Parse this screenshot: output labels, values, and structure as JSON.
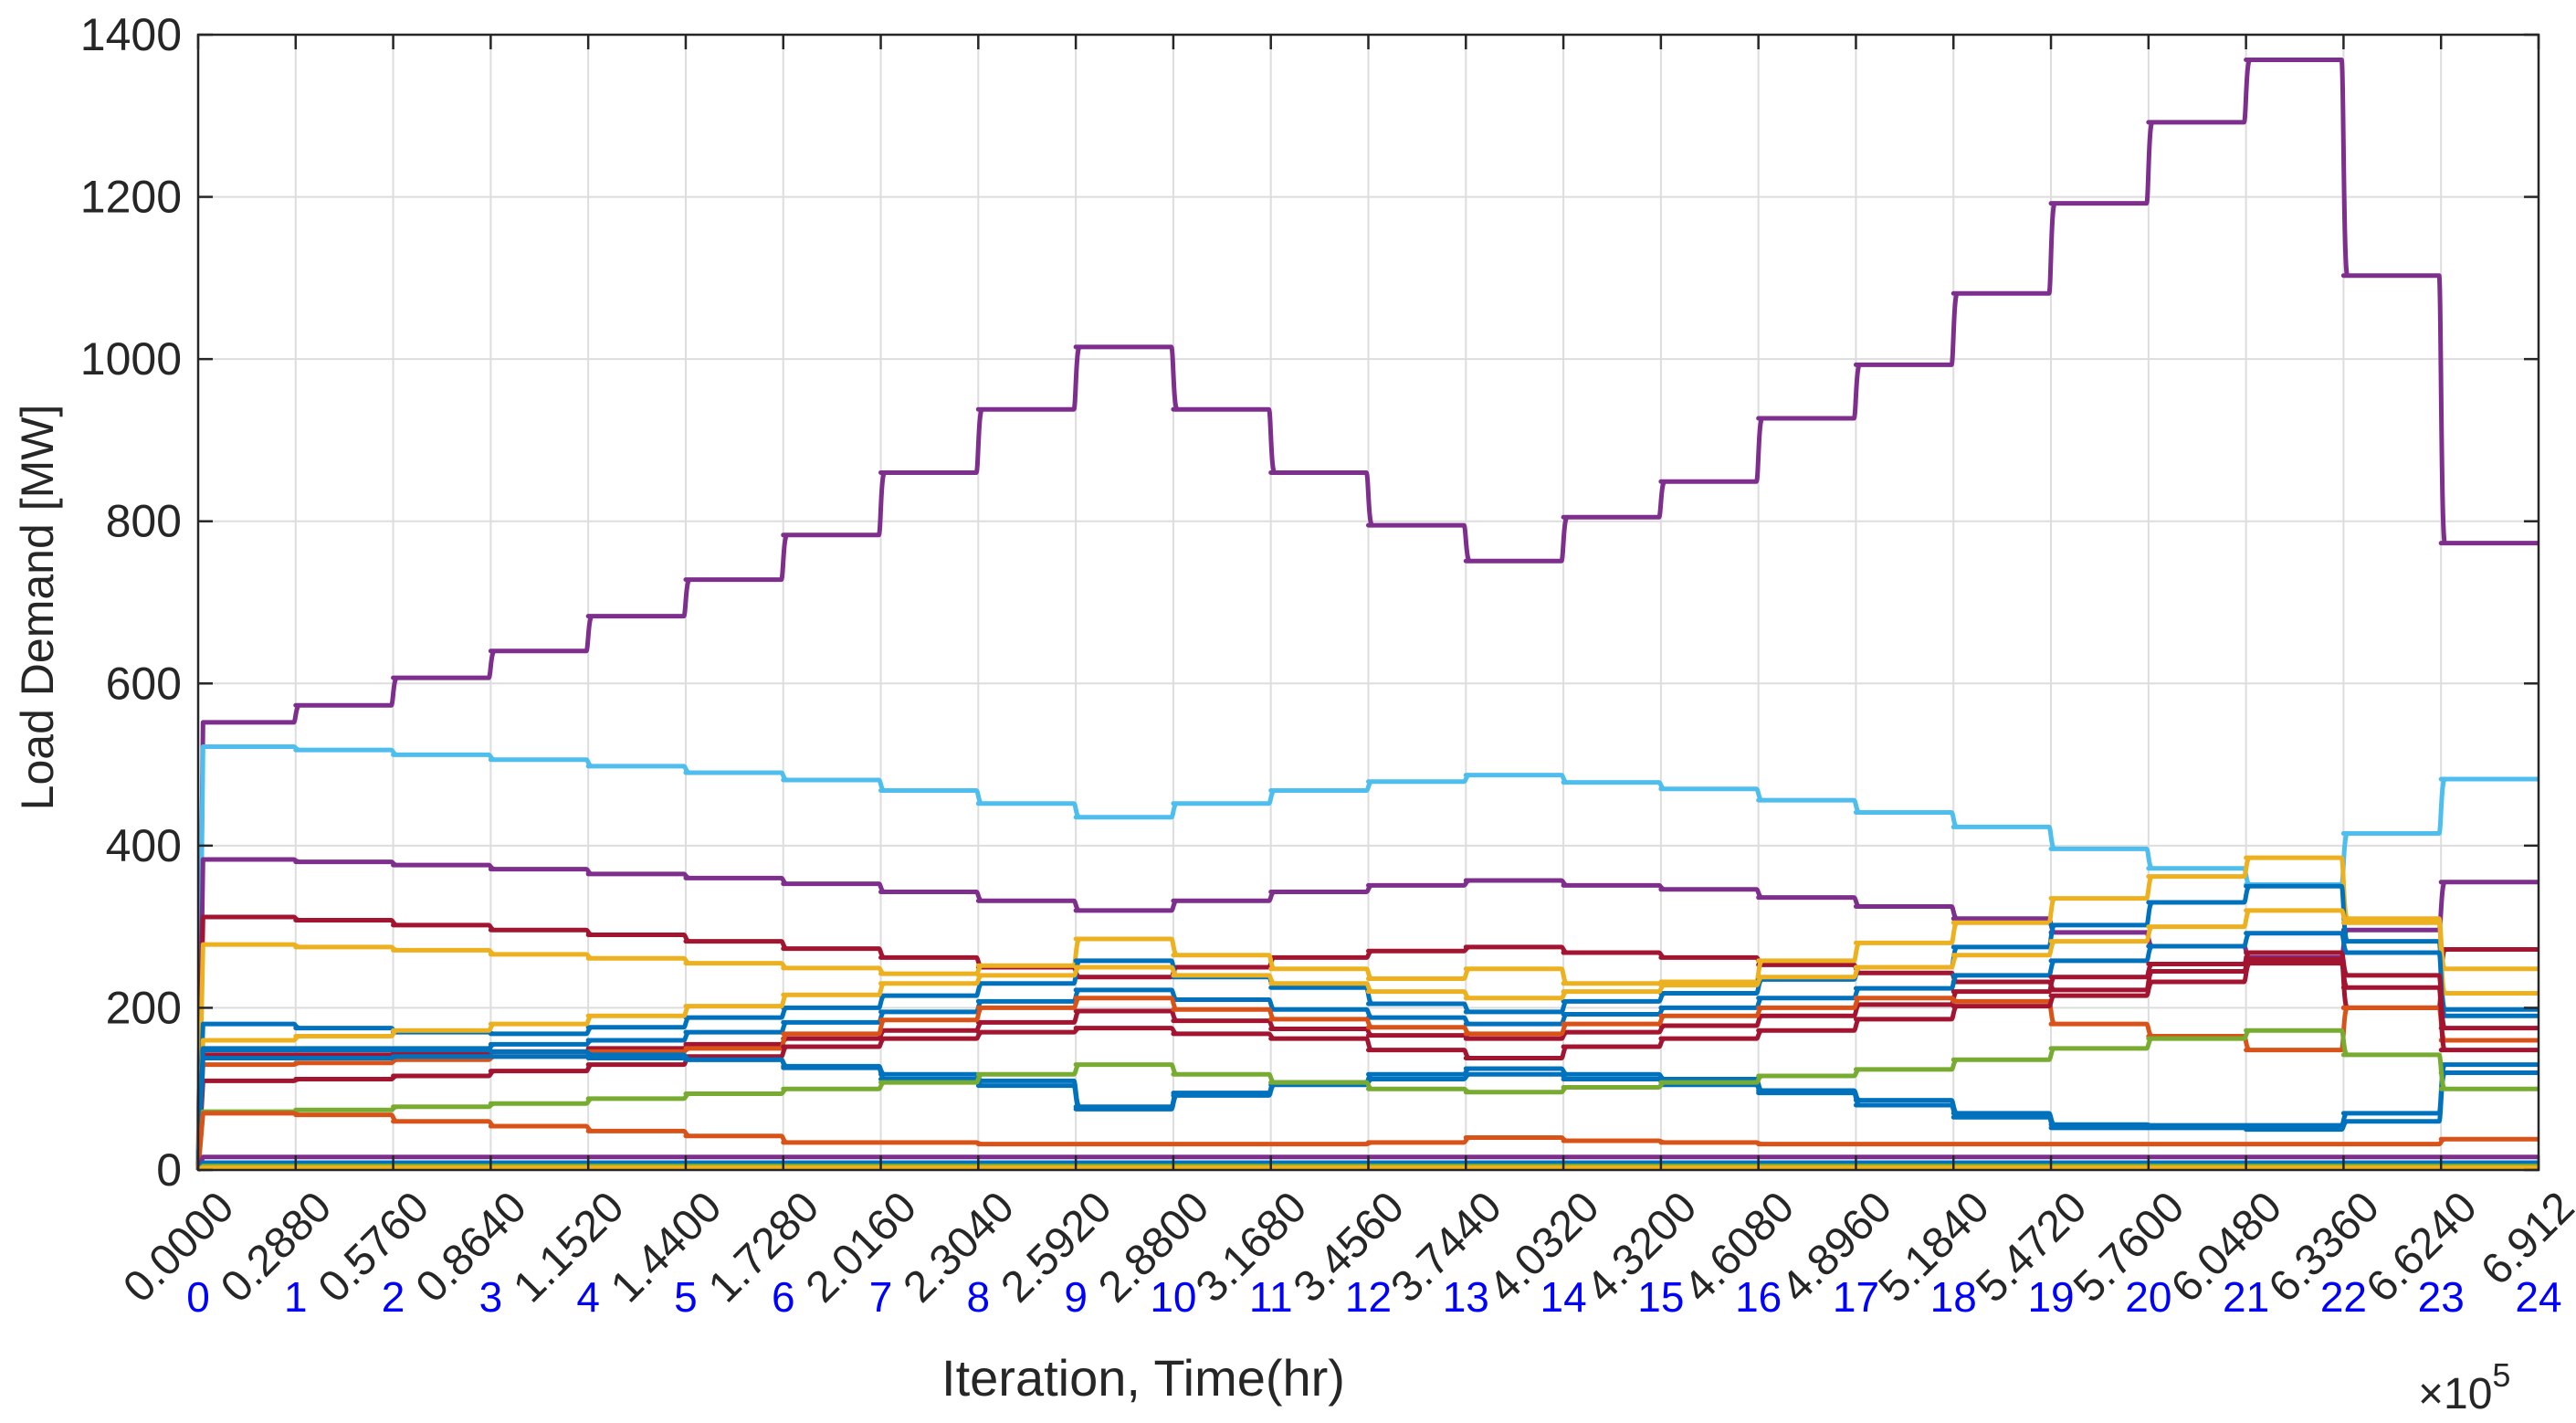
{
  "chart_data": {
    "type": "line",
    "xlabel": "Iteration, Time(hr)",
    "ylabel": "Load Demand [MW]",
    "ylim": [
      0,
      1400
    ],
    "xlim": [
      0,
      24
    ],
    "grid": true,
    "y_ticks": [
      "0",
      "200",
      "400",
      "600",
      "800",
      "1000",
      "1200",
      "1400"
    ],
    "x_iteration_ticks": [
      "0.0000",
      "0.2880",
      "0.5760",
      "0.8640",
      "1.1520",
      "1.4400",
      "1.7280",
      "2.0160",
      "2.3040",
      "2.5920",
      "2.8800",
      "3.1680",
      "3.4560",
      "3.7440",
      "4.0320",
      "4.3200",
      "4.6080",
      "4.8960",
      "5.1840",
      "5.4720",
      "5.7600",
      "6.0480",
      "6.3360",
      "6.6240",
      "6.912"
    ],
    "x_hour_ticks": [
      "0",
      "1",
      "2",
      "3",
      "4",
      "5",
      "6",
      "7",
      "8",
      "9",
      "10",
      "11",
      "12",
      "13",
      "14",
      "15",
      "16",
      "17",
      "18",
      "19",
      "20",
      "21",
      "22",
      "23",
      "24"
    ],
    "x_multiplier": "×10",
    "x_multiplier_exponent": "5",
    "colors": {
      "hour_ticks": "#0000ff",
      "grid": "#dddddd",
      "axis": "#262626"
    },
    "series": [
      {
        "color": "#7e2f8e",
        "values": [
          552,
          573,
          607,
          640,
          683,
          728,
          783,
          860,
          938,
          1015,
          938,
          860,
          795,
          751,
          805,
          849,
          927,
          993,
          1081,
          1192,
          1292,
          1369,
          1103,
          773
        ]
      },
      {
        "color": "#4dbeee",
        "values": [
          522,
          518,
          512,
          506,
          498,
          490,
          481,
          468,
          452,
          435,
          452,
          468,
          479,
          487,
          478,
          470,
          456,
          441,
          423,
          396,
          372,
          352,
          415,
          482
        ]
      },
      {
        "color": "#7e2f8e",
        "values": [
          383,
          380,
          376,
          371,
          365,
          360,
          353,
          343,
          332,
          320,
          332,
          343,
          351,
          357,
          351,
          346,
          336,
          325,
          310,
          293,
          276,
          262,
          296,
          355
        ]
      },
      {
        "color": "#a2142f",
        "values": [
          312,
          308,
          302,
          296,
          290,
          282,
          273,
          262,
          250,
          238,
          250,
          262,
          270,
          275,
          268,
          262,
          253,
          243,
          232,
          222,
          245,
          260,
          200,
          272
        ]
      },
      {
        "color": "#edb120",
        "values": [
          278,
          275,
          271,
          266,
          261,
          255,
          249,
          242,
          252,
          285,
          265,
          248,
          236,
          248,
          230,
          232,
          258,
          280,
          305,
          335,
          362,
          385,
          310,
          248
        ]
      },
      {
        "color": "#0072bd",
        "values": [
          180,
          175,
          170,
          168,
          176,
          188,
          200,
          215,
          230,
          258,
          238,
          225,
          205,
          195,
          208,
          218,
          235,
          250,
          275,
          302,
          330,
          350,
          282,
          198
        ]
      },
      {
        "color": "#edb120",
        "values": [
          160,
          165,
          172,
          180,
          190,
          202,
          216,
          230,
          240,
          250,
          240,
          230,
          220,
          212,
          220,
          228,
          238,
          250,
          265,
          282,
          300,
          320,
          305,
          218
        ]
      },
      {
        "color": "#0072bd",
        "values": [
          148,
          148,
          150,
          155,
          160,
          170,
          182,
          195,
          208,
          222,
          210,
          198,
          188,
          180,
          192,
          200,
          212,
          224,
          240,
          258,
          276,
          292,
          268,
          190
        ]
      },
      {
        "color": "#a2142f",
        "values": [
          142,
          142,
          144,
          146,
          150,
          155,
          162,
          172,
          182,
          196,
          184,
          174,
          166,
          162,
          170,
          178,
          190,
          204,
          220,
          238,
          254,
          268,
          240,
          175
        ]
      },
      {
        "color": "#d95319",
        "values": [
          130,
          132,
          136,
          140,
          146,
          150,
          168,
          185,
          200,
          212,
          198,
          186,
          176,
          168,
          180,
          190,
          200,
          212,
          208,
          180,
          165,
          148,
          200,
          160
        ]
      },
      {
        "color": "#a2142f",
        "values": [
          110,
          112,
          116,
          122,
          130,
          140,
          152,
          162,
          170,
          175,
          168,
          162,
          148,
          138,
          152,
          162,
          172,
          186,
          202,
          215,
          232,
          255,
          225,
          148
        ]
      },
      {
        "color": "#0072bd",
        "values": [
          138,
          138,
          140,
          140,
          138,
          136,
          128,
          118,
          110,
          78,
          95,
          108,
          118,
          125,
          118,
          112,
          98,
          86,
          70,
          56,
          55,
          55,
          70,
          130
        ]
      },
      {
        "color": "#0072bd",
        "values": [
          150,
          150,
          148,
          146,
          142,
          136,
          126,
          112,
          104,
          75,
          92,
          105,
          112,
          118,
          112,
          105,
          95,
          80,
          65,
          52,
          52,
          50,
          60,
          120
        ]
      },
      {
        "color": "#77ac30",
        "values": [
          72,
          74,
          78,
          82,
          88,
          94,
          100,
          108,
          118,
          130,
          118,
          108,
          100,
          96,
          102,
          108,
          116,
          124,
          136,
          150,
          162,
          172,
          142,
          100
        ]
      },
      {
        "color": "#d95319",
        "values": [
          70,
          68,
          60,
          54,
          48,
          42,
          34,
          34,
          32,
          32,
          32,
          32,
          34,
          40,
          36,
          34,
          32,
          32,
          32,
          32,
          32,
          32,
          32,
          38
        ]
      },
      {
        "color": "#7e2f8e",
        "values": [
          16,
          16,
          16,
          16,
          16,
          16,
          16,
          16,
          16,
          16,
          16,
          16,
          16,
          16,
          16,
          16,
          16,
          16,
          16,
          16,
          16,
          16,
          16,
          16
        ]
      },
      {
        "color": "#0072bd",
        "values": [
          9,
          9,
          9,
          9,
          9,
          9,
          9,
          9,
          9,
          9,
          9,
          9,
          9,
          9,
          9,
          9,
          9,
          9,
          9,
          9,
          9,
          9,
          9,
          9
        ]
      },
      {
        "color": "#77ac30",
        "values": [
          5,
          5,
          5,
          5,
          5,
          5,
          5,
          5,
          5,
          5,
          5,
          5,
          5,
          5,
          5,
          5,
          5,
          5,
          5,
          5,
          5,
          5,
          5,
          5
        ]
      },
      {
        "color": "#edb120",
        "values": [
          3,
          3,
          3,
          3,
          3,
          3,
          3,
          3,
          3,
          3,
          3,
          3,
          3,
          3,
          3,
          3,
          3,
          3,
          3,
          3,
          3,
          3,
          3,
          3
        ]
      }
    ]
  }
}
